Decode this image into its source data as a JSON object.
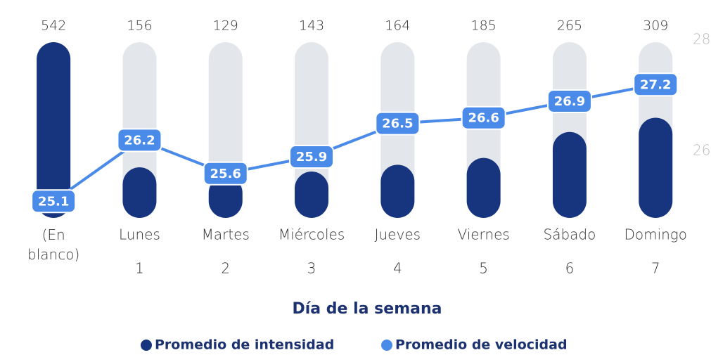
{
  "chart_data": {
    "type": "bar_line",
    "x_label": "Día de la semana",
    "categories": [
      "(En blanco)",
      "Lunes",
      "Martes",
      "Miércoles",
      "Jueves",
      "Viernes",
      "Sábado",
      "Domingo"
    ],
    "category_numbers": [
      null,
      1,
      2,
      3,
      4,
      5,
      6,
      7
    ],
    "ylim": [
      0,
      542
    ],
    "y2lim": [
      24.8,
      28
    ],
    "y2ticks": [
      26,
      28
    ],
    "series": [
      {
        "name": "Promedio de intensidad",
        "color": "#17357f",
        "values": [
          542,
          156,
          129,
          143,
          164,
          185,
          265,
          309
        ]
      },
      {
        "name": "Promedio de velocidad",
        "color": "#4a8ae8",
        "axis": "y2",
        "values": [
          25.1,
          26.2,
          25.6,
          25.9,
          26.5,
          26.6,
          26.9,
          27.2
        ]
      }
    ]
  }
}
